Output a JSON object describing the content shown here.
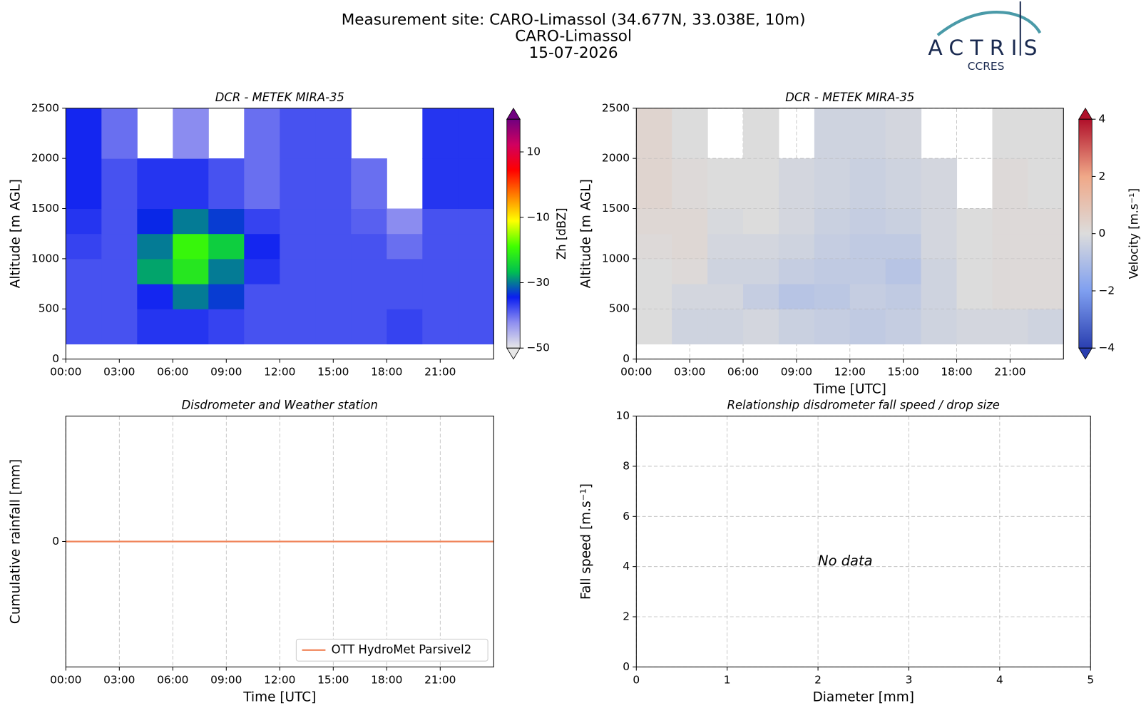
{
  "header": {
    "title_lines": [
      "Measurement site: CARO-Limassol (34.677N, 33.038E, 10m)",
      "CARO-Limassol",
      "15-07-2026"
    ],
    "logo": {
      "text": "ACTRIS",
      "subtext": "CCRES"
    }
  },
  "chart_data": [
    {
      "type": "heatmap",
      "title": "DCR - METEK MIRA-35",
      "ylabel": "Altitude [m AGL]",
      "xlim": [
        0,
        24
      ],
      "xticks": [
        {
          "value": 0,
          "label": "00:00"
        },
        {
          "value": 3,
          "label": "03:00"
        },
        {
          "value": 6,
          "label": "06:00"
        },
        {
          "value": 9,
          "label": "09:00"
        },
        {
          "value": 12,
          "label": "12:00"
        },
        {
          "value": 15,
          "label": "15:00"
        },
        {
          "value": 18,
          "label": "18:00"
        },
        {
          "value": 21,
          "label": "21:00"
        }
      ],
      "ylim": [
        0,
        2500
      ],
      "yticks": [
        0,
        500,
        1000,
        1500,
        2000,
        2500
      ],
      "grid": false,
      "x_edges": [
        0,
        2,
        4,
        6,
        8,
        10,
        12,
        14,
        16,
        18,
        20,
        22,
        24
      ],
      "y_edges": [
        150,
        500,
        750,
        1000,
        1250,
        1500,
        2000,
        2500
      ],
      "z": [
        [
          -38,
          -38,
          -36,
          -36,
          -37,
          -38,
          -38,
          -38,
          -38,
          -37,
          -38,
          -38
        ],
        [
          -38,
          -38,
          -35,
          -30,
          -33,
          -38,
          -38,
          -38,
          -38,
          -38,
          -38,
          -38
        ],
        [
          -38,
          -38,
          -28,
          -22,
          -30,
          -36,
          -38,
          -38,
          -38,
          -38,
          -38,
          -38
        ],
        [
          -37,
          -38,
          -30,
          -20,
          -25,
          -35,
          -38,
          -38,
          -38,
          -40,
          -38,
          -38
        ],
        [
          -36,
          -38,
          -34,
          -30,
          -33,
          -37,
          -38,
          -38,
          -39,
          -42,
          -38,
          -38
        ],
        [
          -35,
          -38,
          -36,
          -36,
          -38,
          -40,
          -38,
          -38,
          -40,
          null,
          -36,
          -36
        ],
        [
          -35,
          -40,
          null,
          -42,
          null,
          -40,
          -38,
          -38,
          null,
          null,
          -36,
          -36
        ]
      ],
      "zlim": [
        -50,
        20
      ],
      "colorbar_label": "Zh [dBZ]",
      "cticks": [
        {
          "value": -50,
          "label": "−50"
        },
        {
          "value": -30,
          "label": "−30"
        },
        {
          "value": -10,
          "label": "−10"
        },
        10
      ],
      "colormap": [
        "#e8e8e8",
        "#8f8ff0",
        "#0a1ef0",
        "#00c050",
        "#40ff00",
        "#ffff00",
        "#ff8000",
        "#ff0000",
        "#d00060",
        "#700080"
      ]
    },
    {
      "type": "heatmap",
      "title": "DCR - METEK MIRA-35",
      "xlabel": "Time [UTC]",
      "ylabel": "Altitude [m AGL]",
      "xlim": [
        0,
        24
      ],
      "xticks": [
        {
          "value": 0,
          "label": "00:00"
        },
        {
          "value": 3,
          "label": "03:00"
        },
        {
          "value": 6,
          "label": "06:00"
        },
        {
          "value": 9,
          "label": "09:00"
        },
        {
          "value": 12,
          "label": "12:00"
        },
        {
          "value": 15,
          "label": "15:00"
        },
        {
          "value": 18,
          "label": "18:00"
        },
        {
          "value": 21,
          "label": "21:00"
        }
      ],
      "ylim": [
        0,
        2500
      ],
      "yticks": [
        0,
        500,
        1000,
        1500,
        2000,
        2500
      ],
      "grid": true,
      "x_edges": [
        0,
        2,
        4,
        6,
        8,
        10,
        12,
        14,
        16,
        18,
        20,
        22,
        24
      ],
      "y_edges": [
        150,
        500,
        750,
        1000,
        1250,
        1500,
        2000,
        2500
      ],
      "z": [
        [
          0,
          -0.3,
          -0.3,
          -0.2,
          -0.4,
          -0.5,
          -0.6,
          -0.5,
          -0.3,
          -0.2,
          -0.2,
          -0.3
        ],
        [
          0,
          -0.2,
          -0.2,
          -0.5,
          -0.8,
          -0.7,
          -0.5,
          -0.6,
          -0.3,
          0,
          0.1,
          0.1
        ],
        [
          0,
          0.1,
          -0.3,
          -0.3,
          -0.5,
          -0.6,
          -0.6,
          -0.8,
          -0.3,
          0,
          0.1,
          0.1
        ],
        [
          0.1,
          0.2,
          -0.2,
          -0.2,
          -0.3,
          -0.5,
          -0.6,
          -0.6,
          -0.2,
          0,
          0.1,
          0.1
        ],
        [
          0.2,
          0.2,
          -0.1,
          0,
          -0.2,
          -0.4,
          -0.5,
          -0.4,
          -0.2,
          0,
          0.1,
          0.1
        ],
        [
          0.3,
          0.1,
          0,
          0,
          -0.2,
          -0.3,
          -0.4,
          -0.3,
          -0.2,
          null,
          0.1,
          0
        ],
        [
          0.3,
          0,
          null,
          0,
          null,
          -0.3,
          -0.3,
          -0.2,
          null,
          null,
          0,
          0
        ]
      ],
      "zlim": [
        -4,
        4
      ],
      "colorbar_label": "Velocity [m.s⁻¹]",
      "cticks": [
        {
          "value": -4,
          "label": "−4"
        },
        {
          "value": -2,
          "label": "−2"
        },
        0,
        2,
        4
      ],
      "colormap": [
        "#2a3fb0",
        "#7f9ff0",
        "#dcdcdc",
        "#f0a888",
        "#b0102a"
      ]
    },
    {
      "type": "line",
      "title": "Disdrometer and Weather station",
      "xlabel": "Time [UTC]",
      "ylabel": "Cumulative rainfall [mm]",
      "xlim": [
        0,
        24
      ],
      "xticks": [
        {
          "value": 0,
          "label": "00:00"
        },
        {
          "value": 3,
          "label": "03:00"
        },
        {
          "value": 6,
          "label": "06:00"
        },
        {
          "value": 9,
          "label": "09:00"
        },
        {
          "value": 12,
          "label": "12:00"
        },
        {
          "value": 15,
          "label": "15:00"
        },
        {
          "value": 18,
          "label": "18:00"
        },
        {
          "value": 21,
          "label": "21:00"
        }
      ],
      "ylim": [
        -0.055,
        0.055
      ],
      "yticks": [
        0
      ],
      "grid": true,
      "legend": "lower right",
      "x": [
        0,
        24
      ],
      "series": [
        {
          "name": "OTT HydroMet Parsivel2",
          "color": "#f0855a",
          "values": [
            0,
            0
          ]
        }
      ]
    },
    {
      "type": "scatter",
      "title": "Relationship disdrometer fall speed / drop size",
      "xlabel": "Diameter [mm]",
      "ylabel": "Fall speed [m.s⁻¹]",
      "xlim": [
        0,
        5
      ],
      "xticks": [
        0,
        1,
        2,
        3,
        4,
        5
      ],
      "ylim": [
        0,
        10
      ],
      "yticks": [
        0,
        2,
        4,
        6,
        8,
        10
      ],
      "grid": true,
      "annotation": "No data"
    }
  ]
}
